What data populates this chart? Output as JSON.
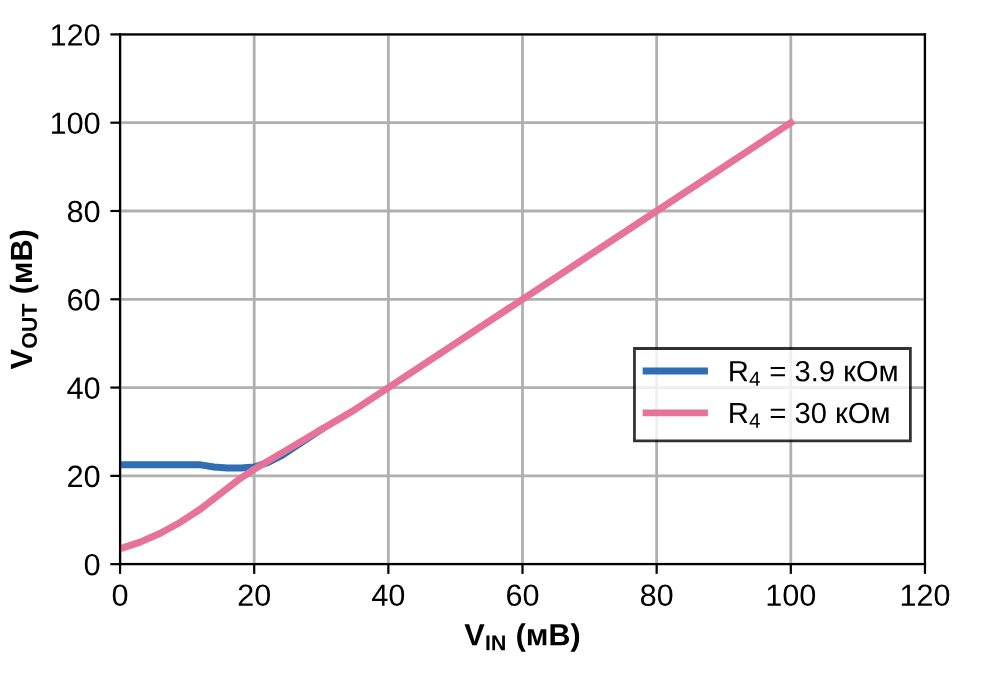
{
  "chart_data": {
    "type": "line",
    "xlabel": "V$_{IN}$ (мВ)",
    "ylabel": "V$_{OUT}$ (мВ)",
    "xlim": [
      0,
      120
    ],
    "ylim": [
      0,
      120
    ],
    "xticks": [
      0,
      20,
      40,
      60,
      80,
      100,
      120
    ],
    "yticks": [
      0,
      20,
      40,
      60,
      80,
      100,
      120
    ],
    "grid": true,
    "legend": "right",
    "line_style": "solid",
    "marker": "none",
    "series": [
      {
        "name": "R$_{4}$ = 3.9 кОм",
        "color": "#2f6db5",
        "x": [
          0,
          5,
          10,
          12,
          14,
          16,
          18,
          20,
          22,
          24,
          26,
          28,
          30
        ],
        "values": [
          22.5,
          22.5,
          22.5,
          22.5,
          22,
          21.8,
          21.8,
          22,
          23,
          24.5,
          26.5,
          28.5,
          30.5
        ]
      },
      {
        "name": "R$_{4}$ = 30 кОм",
        "color": "#e8739a",
        "x": [
          0,
          3,
          6,
          9,
          12,
          15,
          18,
          20,
          25,
          30,
          35,
          40,
          60,
          80,
          100
        ],
        "values": [
          3.5,
          5,
          7,
          9.5,
          12.5,
          16,
          19.5,
          21.5,
          26,
          30.5,
          35,
          40,
          60,
          80,
          100
        ]
      }
    ]
  }
}
